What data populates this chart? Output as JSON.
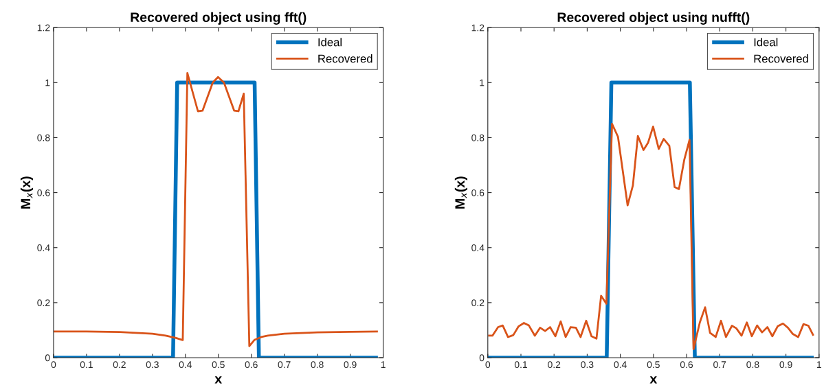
{
  "chart_data": [
    {
      "type": "line",
      "title": "Recovered object using fft()",
      "xlabel": "x",
      "ylabel": "M$_{x}$(x)",
      "xlim": [
        0,
        1
      ],
      "ylim": [
        0,
        1.2
      ],
      "xticks": [
        0,
        0.1,
        0.2,
        0.3,
        0.4,
        0.5,
        0.6,
        0.7,
        0.8,
        0.9,
        1
      ],
      "yticks": [
        0,
        0.2,
        0.4,
        0.6,
        0.8,
        1,
        1.2
      ],
      "grid": false,
      "legend": "top right",
      "series": [
        {
          "name": "Ideal",
          "color": "#0072bd",
          "x": [
            0,
            0.3625,
            0.375,
            0.61,
            0.623,
            0.984
          ],
          "values": [
            0,
            0,
            1,
            1,
            0,
            0
          ]
        },
        {
          "name": "Recovered",
          "color": "#d95319",
          "x": [
            0,
            0.1,
            0.2,
            0.3,
            0.34,
            0.37,
            0.392,
            0.406,
            0.438,
            0.452,
            0.483,
            0.499,
            0.517,
            0.548,
            0.561,
            0.577,
            0.594,
            0.61,
            0.63,
            0.65,
            0.7,
            0.8,
            0.9,
            0.984
          ],
          "values": [
            0.095,
            0.095,
            0.093,
            0.087,
            0.08,
            0.072,
            0.064,
            1.035,
            0.896,
            0.898,
            1.0,
            1.02,
            1.0,
            0.898,
            0.896,
            0.96,
            0.042,
            0.065,
            0.075,
            0.08,
            0.087,
            0.092,
            0.094,
            0.095
          ]
        }
      ]
    },
    {
      "type": "line",
      "title": "Recovered object using nufft()",
      "xlabel": "x",
      "ylabel": "M$_{x}$(x)",
      "xlim": [
        0,
        1
      ],
      "ylim": [
        0,
        1.2
      ],
      "xticks": [
        0,
        0.1,
        0.2,
        0.3,
        0.4,
        0.5,
        0.6,
        0.7,
        0.8,
        0.9,
        1
      ],
      "yticks": [
        0,
        0.2,
        0.4,
        0.6,
        0.8,
        1,
        1.2
      ],
      "grid": false,
      "legend": "top right",
      "series": [
        {
          "name": "Ideal",
          "color": "#0072bd",
          "x": [
            0,
            0.359,
            0.373,
            0.61,
            0.625,
            0.984
          ],
          "values": [
            0,
            0,
            1,
            1,
            0,
            0
          ]
        },
        {
          "name": "Recovered",
          "color": "#d95319",
          "x": [
            0.001,
            0.014,
            0.031,
            0.045,
            0.061,
            0.077,
            0.093,
            0.109,
            0.124,
            0.142,
            0.158,
            0.173,
            0.188,
            0.204,
            0.22,
            0.235,
            0.25,
            0.266,
            0.28,
            0.297,
            0.313,
            0.328,
            0.342,
            0.358,
            0.375,
            0.393,
            0.422,
            0.438,
            0.453,
            0.47,
            0.484,
            0.499,
            0.516,
            0.531,
            0.548,
            0.564,
            0.577,
            0.593,
            0.609,
            0.621,
            0.64,
            0.656,
            0.671,
            0.688,
            0.704,
            0.719,
            0.737,
            0.75,
            0.766,
            0.782,
            0.797,
            0.813,
            0.828,
            0.844,
            0.859,
            0.875,
            0.891,
            0.906,
            0.921,
            0.937,
            0.953,
            0.968,
            0.983
          ],
          "values": [
            0.08,
            0.08,
            0.111,
            0.117,
            0.075,
            0.082,
            0.114,
            0.126,
            0.117,
            0.08,
            0.109,
            0.097,
            0.111,
            0.078,
            0.132,
            0.075,
            0.111,
            0.109,
            0.075,
            0.134,
            0.078,
            0.069,
            0.225,
            0.196,
            0.85,
            0.803,
            0.554,
            0.626,
            0.806,
            0.755,
            0.782,
            0.84,
            0.759,
            0.795,
            0.77,
            0.62,
            0.613,
            0.719,
            0.792,
            0.031,
            0.128,
            0.183,
            0.09,
            0.075,
            0.134,
            0.075,
            0.116,
            0.107,
            0.08,
            0.128,
            0.078,
            0.117,
            0.092,
            0.111,
            0.078,
            0.114,
            0.124,
            0.109,
            0.086,
            0.075,
            0.122,
            0.116,
            0.08
          ]
        }
      ]
    }
  ]
}
